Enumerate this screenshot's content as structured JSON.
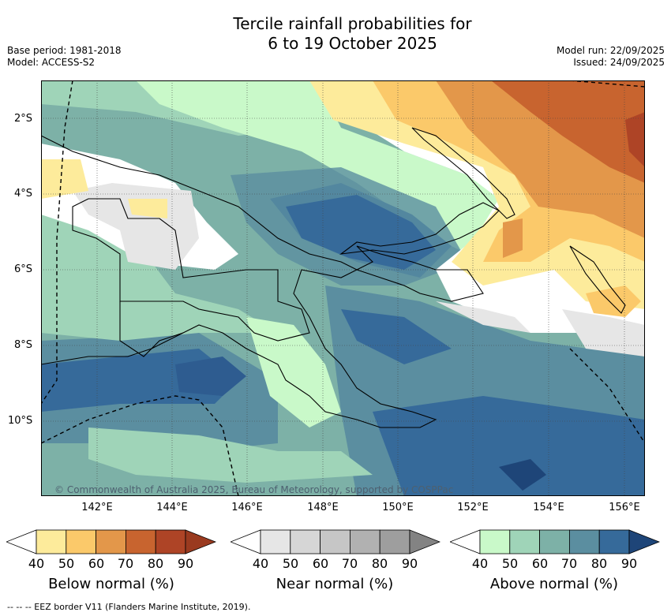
{
  "title_line1": "Tercile rainfall probabilities for",
  "title_line2": "6 to 19 October 2025",
  "base_period": "Base period: 1981-2018",
  "model": "Model: ACCESS-S2",
  "model_run": "Model run: 22/09/2025",
  "issued": "Issued: 24/09/2025",
  "copyright": "© Commonwealth of Australia 2025, Bureau of Meteorology, supported by COSPPac",
  "lat_labels": [
    "2°S",
    "4°S",
    "6°S",
    "8°S",
    "10°S"
  ],
  "lon_labels": [
    "142°E",
    "144°E",
    "146°E",
    "148°E",
    "150°E",
    "152°E",
    "154°E",
    "156°E"
  ],
  "colorbars": {
    "below": {
      "label": "Below normal (%)",
      "ticks": [
        "40",
        "50",
        "60",
        "70",
        "80",
        "90"
      ],
      "colors": [
        "#ffffff",
        "#fdeb9b",
        "#fbc96a",
        "#e3974a",
        "#c8642f",
        "#ae4426",
        "#9a3a1f"
      ]
    },
    "near": {
      "label": "Near normal (%)",
      "ticks": [
        "40",
        "50",
        "60",
        "70",
        "80",
        "90"
      ],
      "colors": [
        "#ffffff",
        "#e6e6e6",
        "#d6d6d6",
        "#c6c6c6",
        "#b1b1b1",
        "#9e9e9e",
        "#838383"
      ]
    },
    "above": {
      "label": "Above normal (%)",
      "ticks": [
        "40",
        "50",
        "60",
        "70",
        "80",
        "90"
      ],
      "colors": [
        "#ffffff",
        "#c9f9c9",
        "#9fd4b8",
        "#7db1a7",
        "#5b8ea0",
        "#366a9a",
        "#1e4578"
      ]
    }
  },
  "footnote": "--  --  -- EEZ border V11 (Flanders Marine Institute, 2019)."
}
